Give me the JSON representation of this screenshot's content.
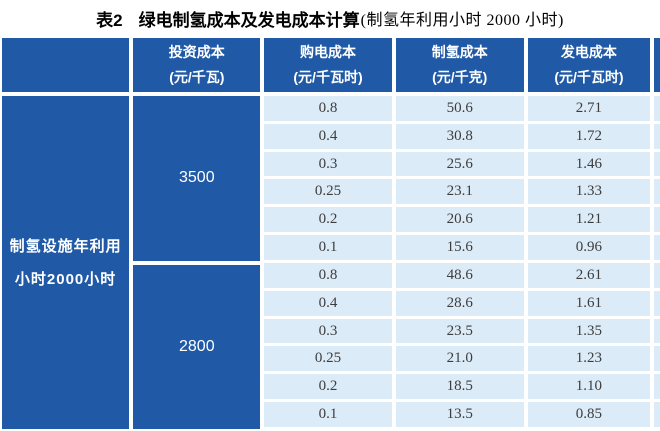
{
  "title": {
    "prefix": "表2",
    "main": "绿电制氢成本及发电成本计算",
    "note": "(制氢年利用小时 2000 小时)"
  },
  "colors": {
    "header_blue": "#205aa7",
    "row_light_blue": "#dcebf8",
    "cell_text": "#3d3d3d"
  },
  "table": {
    "row_header": {
      "line1": "制氢设施年利用",
      "line2": "小时2000小时"
    },
    "columns": [
      {
        "label": "投资成本",
        "unit": "(元/千瓦)"
      },
      {
        "label": "购电成本",
        "unit": "(元/千瓦时)"
      },
      {
        "label": "制氢成本",
        "unit": "(元/千克)"
      },
      {
        "label": "发电成本",
        "unit": "(元/千瓦时)"
      }
    ],
    "groups": [
      {
        "investment_cost": "3500",
        "rows": [
          {
            "purchase": "0.8",
            "hydrogen": "50.6",
            "power": "2.71"
          },
          {
            "purchase": "0.4",
            "hydrogen": "30.8",
            "power": "1.72"
          },
          {
            "purchase": "0.3",
            "hydrogen": "25.6",
            "power": "1.46"
          },
          {
            "purchase": "0.25",
            "hydrogen": "23.1",
            "power": "1.33"
          },
          {
            "purchase": "0.2",
            "hydrogen": "20.6",
            "power": "1.21"
          },
          {
            "purchase": "0.1",
            "hydrogen": "15.6",
            "power": "0.96"
          }
        ]
      },
      {
        "investment_cost": "2800",
        "rows": [
          {
            "purchase": "0.8",
            "hydrogen": "48.6",
            "power": "2.61"
          },
          {
            "purchase": "0.4",
            "hydrogen": "28.6",
            "power": "1.61"
          },
          {
            "purchase": "0.3",
            "hydrogen": "23.5",
            "power": "1.35"
          },
          {
            "purchase": "0.25",
            "hydrogen": "21.0",
            "power": "1.23"
          },
          {
            "purchase": "0.2",
            "hydrogen": "18.5",
            "power": "1.10"
          },
          {
            "purchase": "0.1",
            "hydrogen": "13.5",
            "power": "0.85"
          }
        ]
      }
    ]
  }
}
